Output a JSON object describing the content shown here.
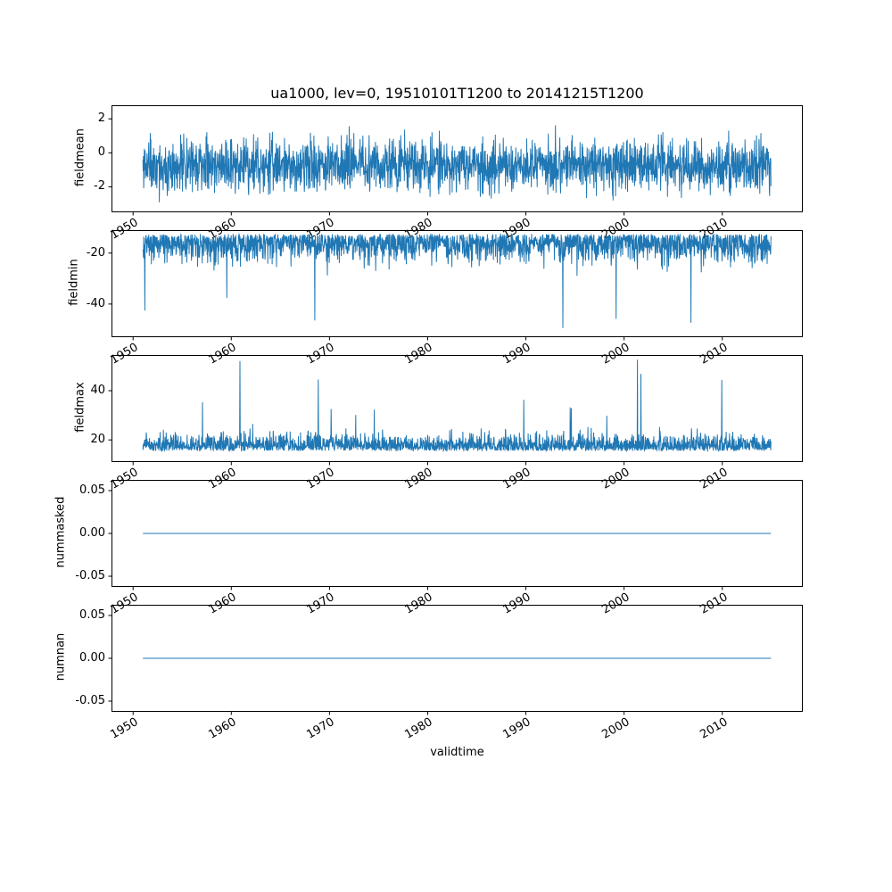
{
  "figure": {
    "title": "ua1000, lev=0, 19510101T1200 to 20141215T1200",
    "xlabel": "validtime",
    "line_color": "#1f77b4",
    "background": "#ffffff",
    "spine_color": "#000000"
  },
  "x_axis": {
    "label": "validtime",
    "xlim": [
      1947.8,
      2018.2
    ],
    "xticks": [
      1950,
      1960,
      1970,
      1980,
      1990,
      2000,
      2010
    ],
    "xtick_labels": [
      "1950",
      "1960",
      "1970",
      "1980",
      "1990",
      "2000",
      "2010"
    ],
    "data_start": 1951.0,
    "data_end": 2014.96
  },
  "chart_data": [
    {
      "type": "line",
      "name": "fieldmean",
      "ylabel": "fieldmean",
      "ylim": [
        -3.5,
        2.8
      ],
      "ytick_values": [
        -2,
        0,
        2
      ],
      "ytick_labels": [
        "-2",
        "0",
        "2"
      ],
      "legend": "none",
      "grid": false,
      "series": {
        "kind": "noisy",
        "noise": "normal",
        "baseline": -0.75,
        "noise_std": 0.78,
        "spike_prob": 0.0012,
        "spike_sign": 1,
        "spike_min": 0.5,
        "spike_max": 1.3,
        "clamp": [
          -3.2,
          2.6
        ],
        "observed_range": [
          -3.1,
          2.6
        ],
        "n_points": 2300,
        "seed": 11
      }
    },
    {
      "type": "line",
      "name": "fieldmin",
      "ylabel": "fieldmin",
      "ylim": [
        -53.0,
        -11.0
      ],
      "ytick_values": [
        -40,
        -20
      ],
      "ytick_labels": [
        "-40",
        "-20"
      ],
      "legend": "none",
      "grid": false,
      "series": {
        "kind": "noisy",
        "noise": "halfnormal",
        "baseline": -12.5,
        "noise_std": 5.0,
        "spike_prob": 0.005,
        "spike_sign": -1,
        "spike_min": 8,
        "spike_max": 38,
        "clamp": [
          -52.5,
          -11.2
        ],
        "observed_range": [
          -52.0,
          -11.0
        ],
        "n_points": 2300,
        "seed": 22
      }
    },
    {
      "type": "line",
      "name": "fieldmax",
      "ylabel": "fieldmax",
      "ylim": [
        11.0,
        54.5
      ],
      "ytick_values": [
        20,
        40
      ],
      "ytick_labels": [
        "20",
        "40"
      ],
      "legend": "none",
      "grid": false,
      "series": {
        "kind": "noisy",
        "noise": "halfnormal",
        "baseline": 15.5,
        "noise_std": 3.2,
        "spike_prob": 0.006,
        "spike_sign": 1,
        "spike_min": 6,
        "spike_max": 37,
        "clamp": [
          14.0,
          53.5
        ],
        "observed_range": [
          14.0,
          53.0
        ],
        "n_points": 2300,
        "seed": 33
      }
    },
    {
      "type": "line",
      "name": "nummasked",
      "ylabel": "nummasked",
      "ylim": [
        -0.0625,
        0.0625
      ],
      "ytick_values": [
        -0.05,
        0,
        0.05
      ],
      "ytick_labels": [
        "-0.05",
        "0.00",
        "0.05"
      ],
      "legend": "none",
      "grid": false,
      "series": {
        "kind": "constant",
        "value": 0.0
      }
    },
    {
      "type": "line",
      "name": "numnan",
      "ylabel": "numnan",
      "ylim": [
        -0.0625,
        0.0625
      ],
      "ytick_values": [
        -0.05,
        0,
        0.05
      ],
      "ytick_labels": [
        "-0.05",
        "0.00",
        "0.05"
      ],
      "legend": "none",
      "grid": false,
      "series": {
        "kind": "constant",
        "value": 0.0
      }
    }
  ]
}
